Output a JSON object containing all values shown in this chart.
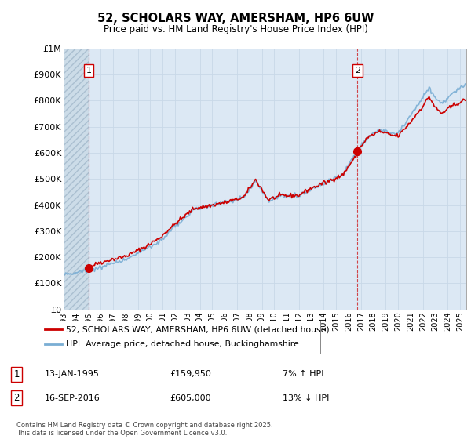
{
  "title": "52, SCHOLARS WAY, AMERSHAM, HP6 6UW",
  "subtitle": "Price paid vs. HM Land Registry's House Price Index (HPI)",
  "ylim": [
    0,
    1000000
  ],
  "yticks": [
    0,
    100000,
    200000,
    300000,
    400000,
    500000,
    600000,
    700000,
    800000,
    900000,
    1000000
  ],
  "ytick_labels": [
    "£0",
    "£100K",
    "£200K",
    "£300K",
    "£400K",
    "£500K",
    "£600K",
    "£700K",
    "£800K",
    "£900K",
    "£1M"
  ],
  "sale1_date": 1995.04,
  "sale1_price": 159950,
  "sale2_date": 2016.71,
  "sale2_price": 605000,
  "hpi_color": "#7aaed4",
  "price_color": "#cc0000",
  "grid_color": "#c8d8e8",
  "bg_color": "#dce8f4",
  "legend_label1": "52, SCHOLARS WAY, AMERSHAM, HP6 6UW (detached house)",
  "legend_label2": "HPI: Average price, detached house, Buckinghamshire",
  "footer": "Contains HM Land Registry data © Crown copyright and database right 2025.\nThis data is licensed under the Open Government Licence v3.0.",
  "vline_color": "#cc0000",
  "annotation_box_color": "#cc0000",
  "xmin": 1993,
  "xmax": 2025.5
}
